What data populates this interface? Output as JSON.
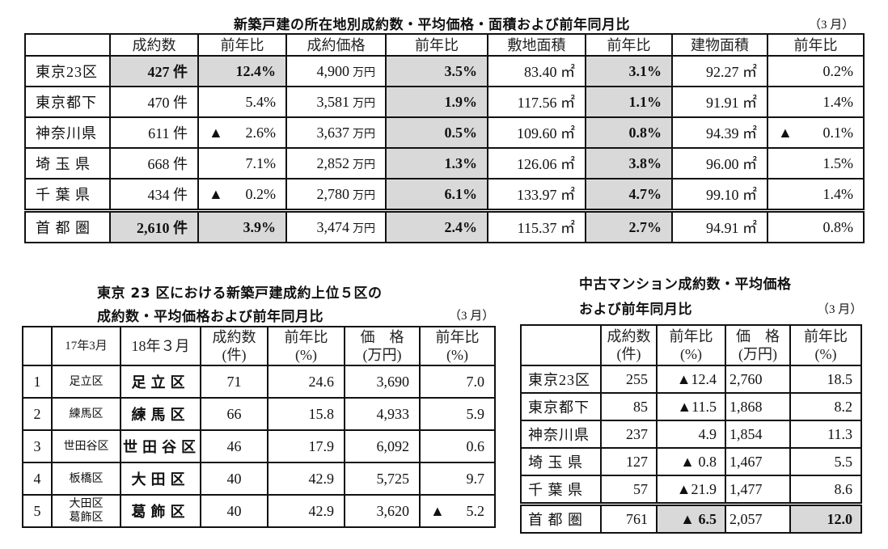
{
  "top": {
    "title": "新築戸建の所在地別成約数・平均価格・面積および前年同月比",
    "month": "（3 月）",
    "headers": [
      "",
      "成約数",
      "前年比",
      "成約価格",
      "前年比",
      "敷地面積",
      "前年比",
      "建物面積",
      "前年比"
    ],
    "rows": [
      {
        "label": "東京23区",
        "highlight_cols": [
          0,
          1,
          3,
          5
        ],
        "cells": [
          "427 件",
          "12.4%",
          {
            "v": "4,900",
            "unit": "万円"
          },
          "3.5%",
          "83.40 ㎡",
          "3.1%",
          "92.27 ㎡",
          "0.2%"
        ]
      },
      {
        "label": "東京都下",
        "highlight_cols": [
          3,
          5
        ],
        "cells": [
          "470 件",
          "5.4%",
          {
            "v": "3,581",
            "unit": "万円"
          },
          "1.9%",
          "117.56 ㎡",
          "1.1%",
          "91.91 ㎡",
          "1.4%"
        ]
      },
      {
        "label": "神奈川県",
        "highlight_cols": [
          3,
          5
        ],
        "cells": [
          "611 件",
          {
            "mark": "▲",
            "v": "2.6%"
          },
          {
            "v": "3,637",
            "unit": "万円"
          },
          "0.5%",
          "109.60 ㎡",
          "0.8%",
          "94.39 ㎡",
          {
            "mark": "▲",
            "v": "0.1%"
          }
        ]
      },
      {
        "label": "埼 玉 県",
        "highlight_cols": [
          3,
          5
        ],
        "cells": [
          "668 件",
          "7.1%",
          {
            "v": "2,852",
            "unit": "万円"
          },
          "1.3%",
          "126.06 ㎡",
          "3.8%",
          "96.00 ㎡",
          "1.5%"
        ]
      },
      {
        "label": "千 葉 県",
        "highlight_cols": [
          3,
          5
        ],
        "cells": [
          "434 件",
          {
            "mark": "▲",
            "v": "0.2%"
          },
          {
            "v": "2,780",
            "unit": "万円"
          },
          "6.1%",
          "133.97 ㎡",
          "4.7%",
          "99.10 ㎡",
          "1.4%"
        ]
      },
      {
        "label": "首 都 圏",
        "highlight_cols": [
          0,
          1,
          3,
          5
        ],
        "cells": [
          "2,610 件",
          "3.9%",
          {
            "v": "3,474",
            "unit": "万円"
          },
          "2.4%",
          "115.37 ㎡",
          "2.7%",
          "94.91 ㎡",
          "0.8%"
        ]
      }
    ]
  },
  "ranking": {
    "title_line1": "東京 23 区における新築戸建成約上位５区の",
    "title_line2": "成約数・平均価格および前年同月比",
    "month": "（3 月）",
    "headers": [
      "",
      "17年3月",
      "18年３月",
      "成約数\n(件)",
      "前年比\n(%)",
      "価　格\n(万円)",
      "前年比\n(%)"
    ],
    "rows": [
      {
        "rank": "1",
        "prev": "足立区",
        "curr": "足立区",
        "cells": [
          "71",
          "24.6",
          "3,690",
          "7.0"
        ]
      },
      {
        "rank": "2",
        "prev": "練馬区",
        "curr": "練馬区",
        "cells": [
          "66",
          "15.8",
          "4,933",
          "5.9"
        ]
      },
      {
        "rank": "3",
        "prev": "世田谷区",
        "curr": "世田谷区",
        "cells": [
          "46",
          "17.9",
          "6,092",
          "0.6"
        ]
      },
      {
        "rank": "4",
        "prev": "板橋区",
        "curr": "大田区",
        "cells": [
          "40",
          "42.9",
          "5,725",
          "9.7"
        ]
      },
      {
        "rank": "5",
        "prev": "大田区\n葛飾区",
        "curr": "葛飾区",
        "cells": [
          "40",
          "42.9",
          "3,620",
          {
            "mark": "▲",
            "v": "5.2"
          }
        ]
      }
    ]
  },
  "condo": {
    "title_line1": "中古マンション成約数・平均価格",
    "title_line2": "および前年同月比",
    "month": "（3 月）",
    "headers": [
      "",
      "成約数\n(件)",
      "前年比\n(%)",
      "価　格\n(万円)",
      "前年比\n(%)"
    ],
    "rows": [
      {
        "label": "東京23区",
        "highlight_cols": [],
        "cells": [
          "255",
          "▲12.4",
          "2,760",
          "18.5"
        ]
      },
      {
        "label": "東京都下",
        "highlight_cols": [],
        "cells": [
          "85",
          "▲11.5",
          "1,868",
          "8.2"
        ]
      },
      {
        "label": "神奈川県",
        "highlight_cols": [],
        "cells": [
          "237",
          "4.9",
          "1,854",
          "11.3"
        ]
      },
      {
        "label": "埼 玉 県",
        "highlight_cols": [],
        "cells": [
          "127",
          "▲ 0.8",
          "1,467",
          "5.5"
        ]
      },
      {
        "label": "千 葉 県",
        "highlight_cols": [],
        "cells": [
          "57",
          "▲21.9",
          "1,477",
          "8.6"
        ]
      },
      {
        "label": "首 都 圏",
        "highlight_cols": [
          1,
          3
        ],
        "cells": [
          "761",
          "▲ 6.5",
          "2,057",
          "12.0"
        ]
      }
    ]
  },
  "colors": {
    "highlight": "#d9d9d9",
    "border": "#111111"
  }
}
